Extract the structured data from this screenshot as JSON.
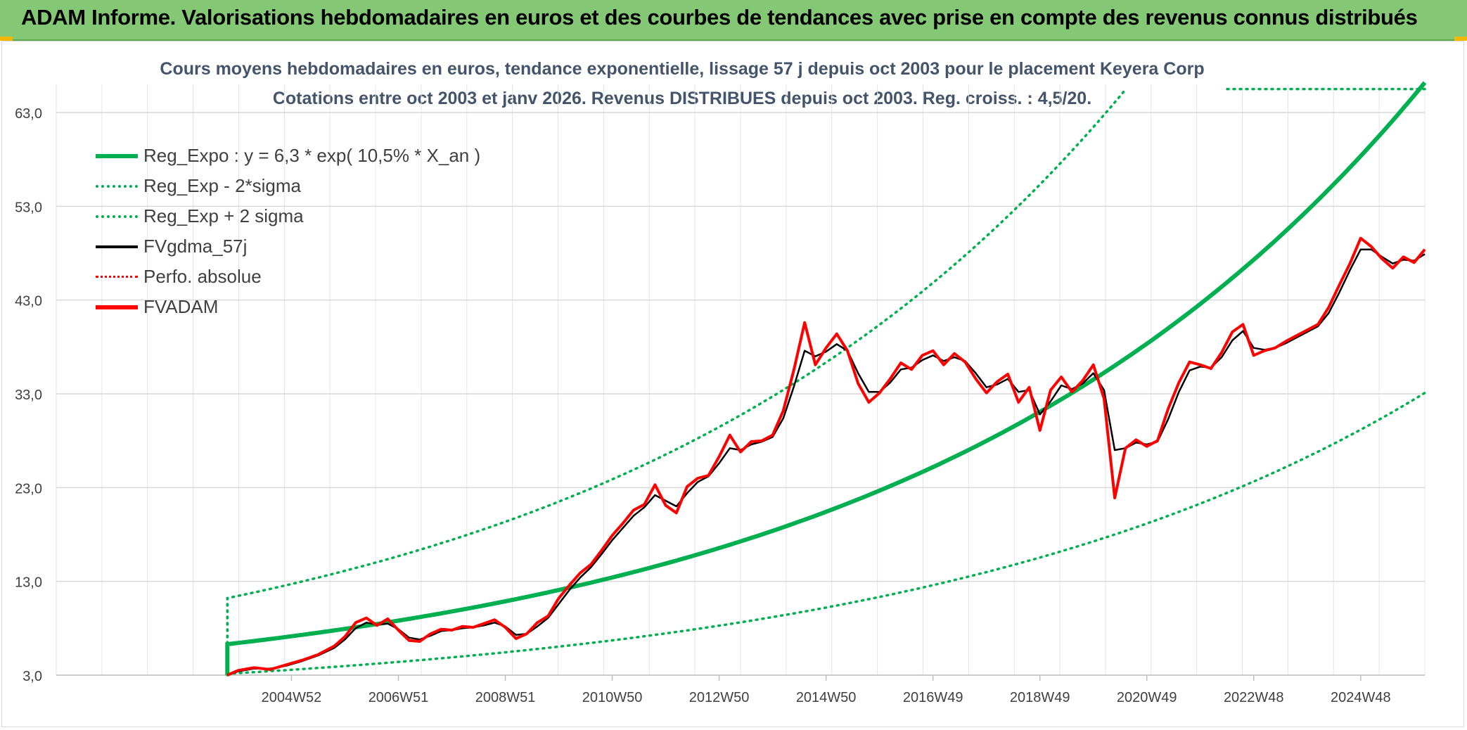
{
  "header": {
    "title": "ADAM Informe. Valorisations hebdomadaires en euros et des courbes de tendances avec prise en compte des revenus connus distribués"
  },
  "chart_data": {
    "type": "line",
    "title_line1": "Cours moyens hebdomadaires en euros, tendance exponentielle, lissage 57 j depuis oct 2003 pour le placement Keyera Corp",
    "title_line2": "Cotations entre oct 2003 et janv 2026. Revenus DISTRIBUES depuis oct 2003. Reg. croiss. : 4,5/20.",
    "ylim": [
      3,
      66
    ],
    "y_ticks": [
      "3,0",
      "13,0",
      "23,0",
      "33,0",
      "43,0",
      "53,0",
      "63,0"
    ],
    "y_tick_values": [
      3,
      13,
      23,
      33,
      43,
      53,
      63
    ],
    "x_range": [
      2000.6,
      2026.2
    ],
    "x_ticks": [
      "2004W52",
      "2006W51",
      "2008W51",
      "2010W50",
      "2012W50",
      "2014W50",
      "2016W49",
      "2018W49",
      "2020W49",
      "2022W48",
      "2024W48"
    ],
    "x_tick_values": [
      2005.0,
      2007.0,
      2009.0,
      2011.0,
      2013.0,
      2015.0,
      2017.0,
      2019.0,
      2021.0,
      2023.0,
      2025.0
    ],
    "grid": true,
    "legend_position": "top-left",
    "legend": [
      {
        "label": "Reg_Expo : y = 6,3 * exp( 10,5% *  X_an )",
        "color": "#00b050",
        "style": "solid-thick"
      },
      {
        "label": "Reg_Exp - 2*sigma",
        "color": "#00b050",
        "style": "dotted"
      },
      {
        "label": "Reg_Exp + 2 sigma",
        "color": "#00b050",
        "style": "dotted"
      },
      {
        "label": "FVgdma_57j",
        "color": "#000000",
        "style": "solid"
      },
      {
        "label": "Perfo. absolue",
        "color": "#ff0000",
        "style": "dotted"
      },
      {
        "label": "FVADAM",
        "color": "#ff0000",
        "style": "solid-thick"
      }
    ],
    "regression": {
      "a": 6.3,
      "rate": 0.105,
      "x_start": 2003.8,
      "x_end": 2026.2,
      "lower_factor": 0.5,
      "upper_factor": 1.78,
      "upper_flat_value": 65.5
    },
    "series": [
      {
        "name": "FVADAM",
        "color": "#ff0000",
        "points": [
          [
            2003.8,
            3.0
          ],
          [
            2004.0,
            3.5
          ],
          [
            2004.3,
            3.8
          ],
          [
            2004.6,
            3.6
          ],
          [
            2004.9,
            4.1
          ],
          [
            2005.2,
            4.6
          ],
          [
            2005.5,
            5.2
          ],
          [
            2005.8,
            6.1
          ],
          [
            2006.0,
            7.1
          ],
          [
            2006.2,
            8.6
          ],
          [
            2006.4,
            9.1
          ],
          [
            2006.6,
            8.3
          ],
          [
            2006.8,
            9.0
          ],
          [
            2007.0,
            7.8
          ],
          [
            2007.2,
            6.7
          ],
          [
            2007.4,
            6.6
          ],
          [
            2007.6,
            7.4
          ],
          [
            2007.8,
            7.9
          ],
          [
            2008.0,
            7.8
          ],
          [
            2008.2,
            8.2
          ],
          [
            2008.4,
            8.1
          ],
          [
            2008.6,
            8.5
          ],
          [
            2008.8,
            8.9
          ],
          [
            2009.0,
            8.1
          ],
          [
            2009.2,
            6.9
          ],
          [
            2009.4,
            7.4
          ],
          [
            2009.6,
            8.6
          ],
          [
            2009.8,
            9.3
          ],
          [
            2010.0,
            11.2
          ],
          [
            2010.2,
            12.6
          ],
          [
            2010.4,
            13.9
          ],
          [
            2010.6,
            14.8
          ],
          [
            2010.8,
            16.3
          ],
          [
            2011.0,
            17.9
          ],
          [
            2011.2,
            19.2
          ],
          [
            2011.4,
            20.6
          ],
          [
            2011.6,
            21.2
          ],
          [
            2011.8,
            23.3
          ],
          [
            2012.0,
            21.1
          ],
          [
            2012.2,
            20.3
          ],
          [
            2012.4,
            23.1
          ],
          [
            2012.6,
            24.0
          ],
          [
            2012.8,
            24.3
          ],
          [
            2013.0,
            26.3
          ],
          [
            2013.2,
            28.6
          ],
          [
            2013.4,
            26.8
          ],
          [
            2013.6,
            27.9
          ],
          [
            2013.8,
            28.0
          ],
          [
            2014.0,
            28.6
          ],
          [
            2014.2,
            31.2
          ],
          [
            2014.4,
            35.6
          ],
          [
            2014.6,
            40.6
          ],
          [
            2014.8,
            36.1
          ],
          [
            2015.0,
            37.9
          ],
          [
            2015.2,
            39.4
          ],
          [
            2015.4,
            37.6
          ],
          [
            2015.6,
            34.1
          ],
          [
            2015.8,
            32.1
          ],
          [
            2016.0,
            33.1
          ],
          [
            2016.2,
            34.6
          ],
          [
            2016.4,
            36.3
          ],
          [
            2016.6,
            35.6
          ],
          [
            2016.8,
            37.1
          ],
          [
            2017.0,
            37.6
          ],
          [
            2017.2,
            36.1
          ],
          [
            2017.4,
            37.3
          ],
          [
            2017.6,
            36.4
          ],
          [
            2017.8,
            34.6
          ],
          [
            2018.0,
            33.1
          ],
          [
            2018.2,
            34.3
          ],
          [
            2018.4,
            35.1
          ],
          [
            2018.6,
            32.1
          ],
          [
            2018.8,
            33.7
          ],
          [
            2019.0,
            29.1
          ],
          [
            2019.2,
            33.4
          ],
          [
            2019.4,
            34.8
          ],
          [
            2019.6,
            33.2
          ],
          [
            2019.8,
            34.4
          ],
          [
            2020.0,
            36.1
          ],
          [
            2020.2,
            32.5
          ],
          [
            2020.4,
            21.9
          ],
          [
            2020.6,
            27.2
          ],
          [
            2020.8,
            28.1
          ],
          [
            2021.0,
            27.4
          ],
          [
            2021.2,
            28.0
          ],
          [
            2021.4,
            31.4
          ],
          [
            2021.6,
            34.2
          ],
          [
            2021.8,
            36.4
          ],
          [
            2022.0,
            36.1
          ],
          [
            2022.2,
            35.7
          ],
          [
            2022.4,
            37.4
          ],
          [
            2022.6,
            39.6
          ],
          [
            2022.8,
            40.4
          ],
          [
            2023.0,
            37.1
          ],
          [
            2023.2,
            37.6
          ],
          [
            2023.4,
            37.9
          ],
          [
            2023.6,
            38.6
          ],
          [
            2023.8,
            39.2
          ],
          [
            2024.0,
            39.8
          ],
          [
            2024.2,
            40.4
          ],
          [
            2024.4,
            42.2
          ],
          [
            2024.6,
            44.6
          ],
          [
            2024.8,
            46.9
          ],
          [
            2025.0,
            49.6
          ],
          [
            2025.2,
            48.7
          ],
          [
            2025.4,
            47.4
          ],
          [
            2025.6,
            46.4
          ],
          [
            2025.8,
            47.6
          ],
          [
            2026.0,
            47.0
          ],
          [
            2026.2,
            48.4
          ]
        ]
      },
      {
        "name": "FVgdma_57j",
        "color": "#000000",
        "points": [
          [
            2003.8,
            3.0
          ],
          [
            2004.0,
            3.4
          ],
          [
            2004.3,
            3.7
          ],
          [
            2004.6,
            3.7
          ],
          [
            2004.9,
            4.0
          ],
          [
            2005.2,
            4.5
          ],
          [
            2005.5,
            5.1
          ],
          [
            2005.8,
            5.9
          ],
          [
            2006.0,
            6.8
          ],
          [
            2006.2,
            8.0
          ],
          [
            2006.4,
            8.6
          ],
          [
            2006.6,
            8.4
          ],
          [
            2006.8,
            8.5
          ],
          [
            2007.0,
            7.9
          ],
          [
            2007.2,
            7.0
          ],
          [
            2007.4,
            6.8
          ],
          [
            2007.6,
            7.2
          ],
          [
            2007.8,
            7.7
          ],
          [
            2008.0,
            7.8
          ],
          [
            2008.2,
            8.0
          ],
          [
            2008.4,
            8.1
          ],
          [
            2008.6,
            8.3
          ],
          [
            2008.8,
            8.6
          ],
          [
            2009.0,
            8.2
          ],
          [
            2009.2,
            7.3
          ],
          [
            2009.4,
            7.4
          ],
          [
            2009.6,
            8.2
          ],
          [
            2009.8,
            9.1
          ],
          [
            2010.0,
            10.6
          ],
          [
            2010.2,
            12.1
          ],
          [
            2010.4,
            13.4
          ],
          [
            2010.6,
            14.5
          ],
          [
            2010.8,
            15.9
          ],
          [
            2011.0,
            17.4
          ],
          [
            2011.2,
            18.7
          ],
          [
            2011.4,
            20.0
          ],
          [
            2011.6,
            20.9
          ],
          [
            2011.8,
            22.2
          ],
          [
            2012.0,
            21.6
          ],
          [
            2012.2,
            21.0
          ],
          [
            2012.4,
            22.4
          ],
          [
            2012.6,
            23.6
          ],
          [
            2012.8,
            24.2
          ],
          [
            2013.0,
            25.6
          ],
          [
            2013.2,
            27.2
          ],
          [
            2013.4,
            27.0
          ],
          [
            2013.6,
            27.6
          ],
          [
            2013.8,
            27.9
          ],
          [
            2014.0,
            28.4
          ],
          [
            2014.2,
            30.4
          ],
          [
            2014.4,
            33.8
          ],
          [
            2014.6,
            37.6
          ],
          [
            2014.8,
            37.0
          ],
          [
            2015.0,
            37.5
          ],
          [
            2015.2,
            38.3
          ],
          [
            2015.4,
            37.6
          ],
          [
            2015.6,
            35.2
          ],
          [
            2015.8,
            33.2
          ],
          [
            2016.0,
            33.2
          ],
          [
            2016.2,
            34.2
          ],
          [
            2016.4,
            35.6
          ],
          [
            2016.6,
            35.8
          ],
          [
            2016.8,
            36.6
          ],
          [
            2017.0,
            37.1
          ],
          [
            2017.2,
            36.5
          ],
          [
            2017.4,
            36.9
          ],
          [
            2017.6,
            36.5
          ],
          [
            2017.8,
            35.2
          ],
          [
            2018.0,
            33.7
          ],
          [
            2018.2,
            34.0
          ],
          [
            2018.4,
            34.6
          ],
          [
            2018.6,
            33.2
          ],
          [
            2018.8,
            33.4
          ],
          [
            2019.0,
            30.8
          ],
          [
            2019.2,
            32.2
          ],
          [
            2019.4,
            33.9
          ],
          [
            2019.6,
            33.5
          ],
          [
            2019.8,
            34.1
          ],
          [
            2020.0,
            35.2
          ],
          [
            2020.2,
            33.4
          ],
          [
            2020.4,
            27.0
          ],
          [
            2020.6,
            27.2
          ],
          [
            2020.8,
            27.8
          ],
          [
            2021.0,
            27.6
          ],
          [
            2021.2,
            27.9
          ],
          [
            2021.4,
            30.3
          ],
          [
            2021.6,
            33.2
          ],
          [
            2021.8,
            35.5
          ],
          [
            2022.0,
            35.9
          ],
          [
            2022.2,
            35.8
          ],
          [
            2022.4,
            36.9
          ],
          [
            2022.6,
            38.7
          ],
          [
            2022.8,
            39.7
          ],
          [
            2023.0,
            37.9
          ],
          [
            2023.2,
            37.7
          ],
          [
            2023.4,
            37.9
          ],
          [
            2023.6,
            38.4
          ],
          [
            2023.8,
            39.0
          ],
          [
            2024.0,
            39.6
          ],
          [
            2024.2,
            40.2
          ],
          [
            2024.4,
            41.6
          ],
          [
            2024.6,
            43.8
          ],
          [
            2024.8,
            46.2
          ],
          [
            2025.0,
            48.4
          ],
          [
            2025.2,
            48.4
          ],
          [
            2025.4,
            47.6
          ],
          [
            2025.6,
            46.9
          ],
          [
            2025.8,
            47.3
          ],
          [
            2026.0,
            47.2
          ],
          [
            2026.2,
            47.9
          ]
        ]
      }
    ]
  }
}
